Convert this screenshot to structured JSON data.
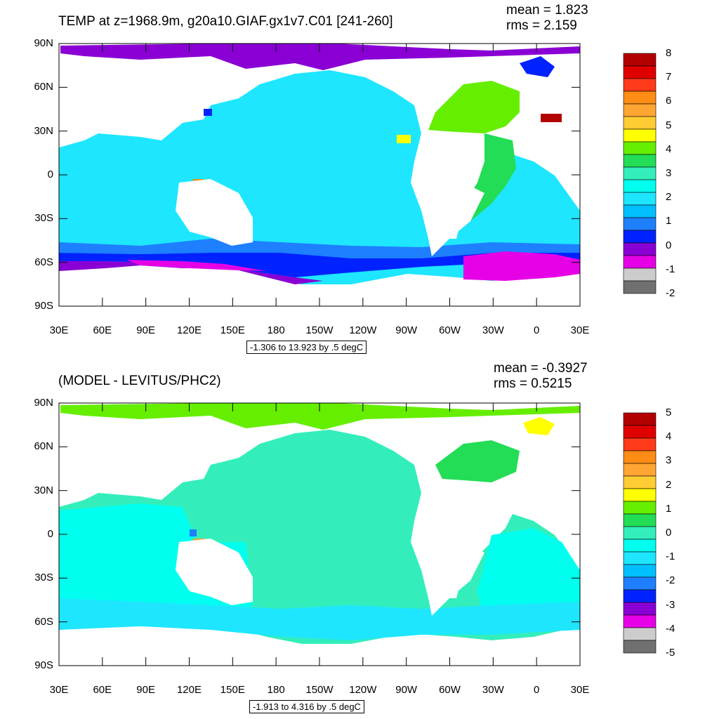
{
  "chart_data": [
    {
      "type": "heatmap",
      "title": "TEMP at z=1968.9m, g20a10.GIAF.gx1v7.C01 [241-260]",
      "mean_label": "mean = 1.823",
      "rms_label": "rms = 2.159",
      "range_label": "-1.306 to 13.923 by .5 degC",
      "lat_ticks": [
        "90N",
        "60N",
        "30N",
        "0",
        "30S",
        "60S",
        "90S"
      ],
      "lon_ticks": [
        "30E",
        "60E",
        "90E",
        "120E",
        "150E",
        "180",
        "150W",
        "120W",
        "90W",
        "60W",
        "30W",
        "0",
        "30E"
      ],
      "colorbar_labels": [
        "8",
        "7",
        "6",
        "5",
        "4",
        "3",
        "2",
        "1",
        "0",
        "-1",
        "-2"
      ],
      "colorbar_colors": [
        "#b30000",
        "#e00000",
        "#ff3b1a",
        "#ff8c14",
        "#ffa533",
        "#ffcc33",
        "#ffff00",
        "#66ee00",
        "#22dd55",
        "#33eebb",
        "#00ffee",
        "#1ee6ff",
        "#00bfff",
        "#1e7fff",
        "#0022ff",
        "#8a00d4",
        "#e600e6",
        "#cccccc",
        "#707070"
      ],
      "colors": {
        "ocean": "#1ee6ff",
        "land": "#ffffff"
      }
    },
    {
      "type": "heatmap",
      "title": "(MODEL - LEVITUS/PHC2)",
      "mean_label": "mean = -0.3927",
      "rms_label": "rms = 0.5215",
      "range_label": "-1.913 to 4.316 by .5 degC",
      "lat_ticks": [
        "90N",
        "60N",
        "30N",
        "0",
        "30S",
        "60S",
        "90S"
      ],
      "lon_ticks": [
        "30E",
        "60E",
        "90E",
        "120E",
        "150E",
        "180",
        "150W",
        "120W",
        "90W",
        "60W",
        "30W",
        "0",
        "30E"
      ],
      "colorbar_labels": [
        "5",
        "4",
        "3",
        "2",
        "1",
        "0",
        "-1",
        "-2",
        "-3",
        "-4",
        "-5"
      ],
      "colorbar_colors": [
        "#b30000",
        "#e00000",
        "#ff3b1a",
        "#ff8c14",
        "#ffa533",
        "#ffcc33",
        "#ffff00",
        "#66ee00",
        "#22dd55",
        "#33eebb",
        "#00ffee",
        "#1ee6ff",
        "#00bfff",
        "#1e7fff",
        "#0022ff",
        "#8a00d4",
        "#e600e6",
        "#cccccc",
        "#707070"
      ],
      "colors": {
        "ocean": "#33eebb",
        "land": "#ffffff"
      }
    }
  ]
}
